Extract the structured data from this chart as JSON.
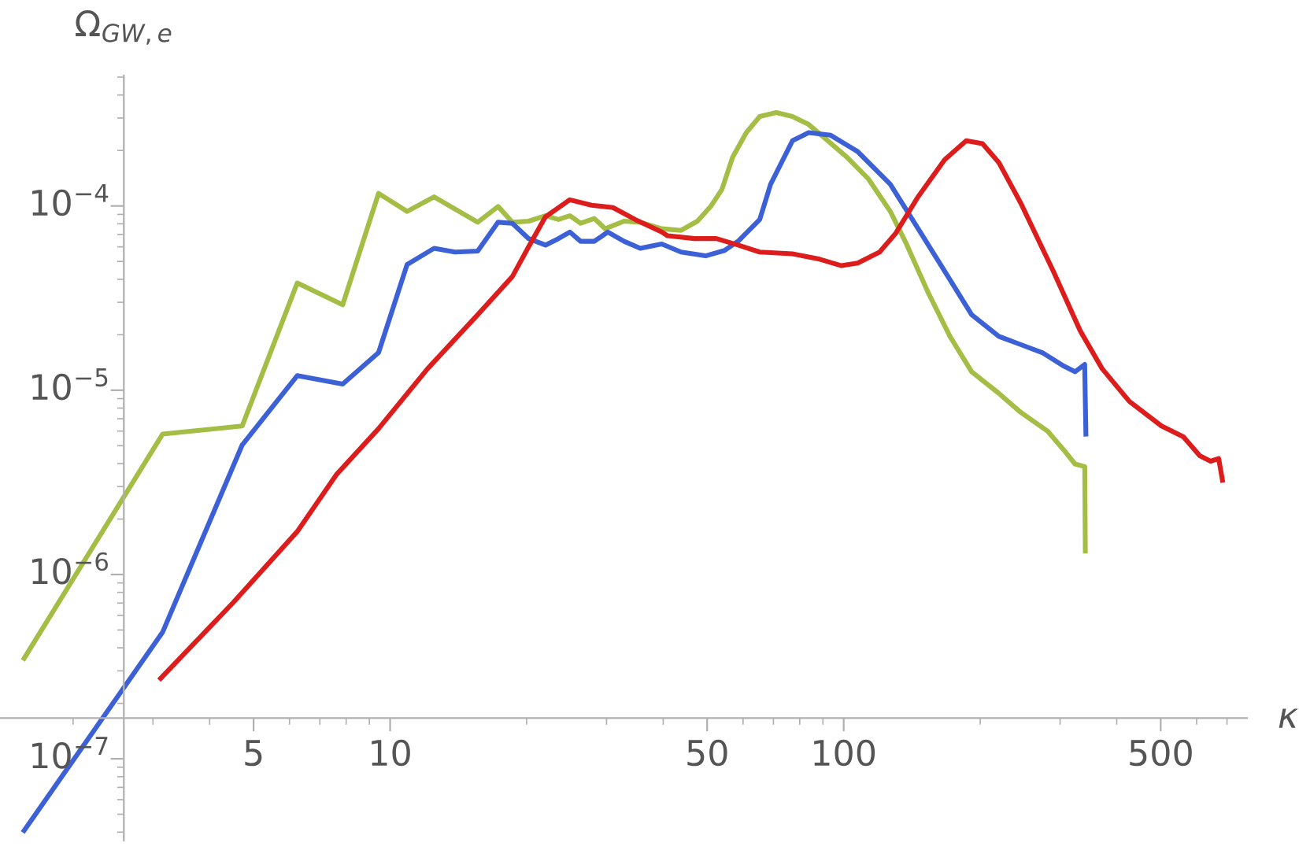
{
  "chart_data": {
    "type": "line",
    "xlabel": "κ",
    "ylabel": "Ω$_{GW,e}$",
    "log": "xy",
    "grid": false,
    "marker": "none",
    "line_style": "solid",
    "xlim": [
      1.38,
      775
    ],
    "ylim": [
      3.6e-08,
      0.00051
    ],
    "xticks": [
      5,
      10,
      50,
      100,
      500
    ],
    "yticks": [
      {
        "value": 1e-07,
        "label": "10$^{−7}$"
      },
      {
        "value": 1e-06,
        "label": "10$^{−6}$"
      },
      {
        "value": 1e-05,
        "label": "10$^{−5}$"
      },
      {
        "value": 0.0001,
        "label": "10$^{−4}$"
      }
    ],
    "series": [
      {
        "color": "#a3bd45",
        "x": [
          1.56,
          3.15,
          4.72,
          6.24,
          7.86,
          9.43,
          10.9,
          12.5,
          15.6,
          17.3,
          18.6,
          20.2,
          22.0,
          23.5,
          24.9,
          26.3,
          28.2,
          29.8,
          32.8,
          35.6,
          39.7,
          43.8,
          47.6,
          51.0,
          53.9,
          56.9,
          61.0,
          65.3,
          71.0,
          77.1,
          83.7,
          90.9,
          101.6,
          113.4,
          126.7,
          137.5,
          153.6,
          171.5,
          191.5,
          219.8,
          245.5,
          281.8,
          306.1,
          323.6,
          340,
          341
        ],
        "values": [
          3.51e-07,
          5.78e-06,
          6.4e-06,
          3.82e-05,
          2.91e-05,
          0.000117,
          9.34e-05,
          0.000112,
          8.16e-05,
          9.93e-05,
          8.16e-05,
          8.27e-05,
          8.85e-05,
          8.44e-05,
          8.85e-05,
          8.05e-05,
          8.55e-05,
          7.52e-05,
          8.27e-05,
          8.16e-05,
          7.52e-05,
          7.37e-05,
          8.27e-05,
          0.0001,
          0.000123,
          0.000184,
          0.00025,
          0.000306,
          0.000321,
          0.000306,
          0.000277,
          0.000233,
          0.000184,
          0.00014,
          9.34e-05,
          6.22e-05,
          3.38e-05,
          1.96e-05,
          1.26e-05,
          9.62e-06,
          7.59e-06,
          5.98e-06,
          4.72e-06,
          3.98e-06,
          3.85e-06,
          1.34e-06
        ]
      },
      {
        "color": "#3c61d6",
        "x": [
          1.56,
          3.15,
          4.72,
          6.24,
          7.86,
          9.43,
          10.9,
          12.5,
          13.9,
          15.6,
          17.3,
          18.6,
          20.2,
          22.0,
          23.5,
          24.9,
          26.3,
          28.2,
          30.2,
          32.8,
          35.6,
          39.7,
          43.8,
          49.6,
          54.6,
          58.5,
          65.3,
          69.0,
          77.1,
          83.7,
          93.6,
          107.4,
          126.7,
          145.5,
          166.9,
          191.5,
          219.8,
          245.5,
          274.1,
          306.1,
          323.6,
          339.9,
          342
        ],
        "values": [
          4.08e-08,
          4.86e-07,
          5.05e-06,
          1.2e-05,
          1.08e-05,
          1.6e-05,
          4.81e-05,
          5.89e-05,
          5.62e-05,
          5.69e-05,
          8.16e-05,
          8.05e-05,
          6.65e-05,
          6.13e-05,
          6.65e-05,
          7.22e-05,
          6.43e-05,
          6.43e-05,
          7.22e-05,
          6.43e-05,
          5.89e-05,
          6.22e-05,
          5.62e-05,
          5.36e-05,
          5.73e-05,
          6.43e-05,
          8.44e-05,
          0.000131,
          0.000226,
          0.00025,
          0.000242,
          0.000197,
          0.000131,
          7.62e-05,
          4.43e-05,
          2.57e-05,
          1.96e-05,
          1.77e-05,
          1.6e-05,
          1.35e-05,
          1.26e-05,
          1.38e-05,
          5.78e-06
        ]
      },
      {
        "color": "#dd1c1c",
        "x": [
          3.12,
          4.51,
          6.24,
          7.61,
          9.43,
          12.1,
          15.6,
          18.6,
          20.2,
          22.0,
          24.9,
          27.8,
          31.0,
          34.7,
          39.7,
          40.9,
          46.9,
          52.4,
          58.5,
          65.3,
          77.1,
          88.5,
          98.9,
          107.4,
          120.0,
          130.3,
          145.5,
          166.9,
          186.3,
          202.3,
          219.8,
          245.5,
          289.8,
          332.3,
          371.3,
          426.6,
          502,
          561,
          609.5,
          644,
          671,
          684
        ],
        "values": [
          2.73e-07,
          7.05e-07,
          1.71e-06,
          3.48e-06,
          6.19e-06,
          1.31e-05,
          2.57e-05,
          4.14e-05,
          6.01e-05,
          8.73e-05,
          0.000108,
          0.000101,
          9.8e-05,
          8.44e-05,
          7.22e-05,
          6.89e-05,
          6.65e-05,
          6.65e-05,
          6.13e-05,
          5.62e-05,
          5.5e-05,
          5.14e-05,
          4.74e-05,
          4.9e-05,
          5.62e-05,
          7.12e-05,
          0.000111,
          0.000178,
          0.000226,
          0.000218,
          0.000172,
          0.000104,
          4.43e-05,
          2.1e-05,
          1.31e-05,
          8.69e-06,
          6.4e-06,
          5.59e-06,
          4.41e-06,
          4.12e-06,
          4.26e-06,
          3.25e-06
        ]
      }
    ]
  }
}
